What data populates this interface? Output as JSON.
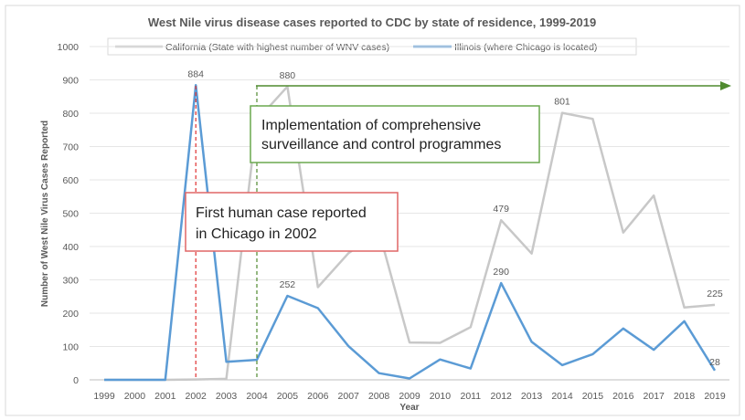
{
  "chart_data": {
    "type": "line",
    "title": "West Nile virus disease cases reported to CDC by state of residence, 1999-2019",
    "xlabel": "Year",
    "ylabel": "Number of West Nile Virus Cases Reported",
    "ylim": [
      0,
      1000
    ],
    "yticks": [
      "0",
      "100",
      "200",
      "300",
      "400",
      "500",
      "600",
      "700",
      "800",
      "900",
      "1000"
    ],
    "x": [
      "1999",
      "2000",
      "2001",
      "2002",
      "2003",
      "2004",
      "2005",
      "2006",
      "2007",
      "2008",
      "2009",
      "2010",
      "2011",
      "2012",
      "2013",
      "2014",
      "2015",
      "2016",
      "2017",
      "2018",
      "2019"
    ],
    "grid": true,
    "legend_position": "top",
    "series": [
      {
        "name": "California (State with highest number of WNV cases)",
        "color": "#c8c8c8",
        "values": [
          0,
          0,
          0,
          1,
          3,
          779,
          880,
          278,
          380,
          445,
          112,
          111,
          158,
          479,
          379,
          801,
          783,
          442,
          553,
          217,
          225
        ]
      },
      {
        "name": "Illinois (where Chicago is located)",
        "color": "#5b9bd5",
        "values": [
          0,
          0,
          0,
          884,
          54,
          60,
          252,
          215,
          101,
          20,
          4,
          61,
          34,
          290,
          114,
          44,
          77,
          154,
          90,
          176,
          28
        ]
      }
    ],
    "data_labels": [
      {
        "series": 1,
        "index": 3,
        "text": "884"
      },
      {
        "series": 0,
        "index": 6,
        "text": "880"
      },
      {
        "series": 1,
        "index": 6,
        "text": "252"
      },
      {
        "series": 0,
        "index": 13,
        "text": "479"
      },
      {
        "series": 1,
        "index": 13,
        "text": "290"
      },
      {
        "series": 0,
        "index": 15,
        "text": "801"
      },
      {
        "series": 0,
        "index": 20,
        "text": "225"
      },
      {
        "series": 1,
        "index": 20,
        "text": "28"
      }
    ],
    "annotations": {
      "first_case": {
        "text_line1": "First human case reported",
        "text_line2": "in Chicago in 2002",
        "year": "2002",
        "border_color": "#e06666",
        "line_color": "#e03030"
      },
      "programmes": {
        "text_line1": "Implementation of comprehensive",
        "text_line2": "surveillance and control programmes",
        "year": "2004",
        "border_color": "#6aa84f",
        "line_color": "#4f8a2f"
      }
    }
  }
}
